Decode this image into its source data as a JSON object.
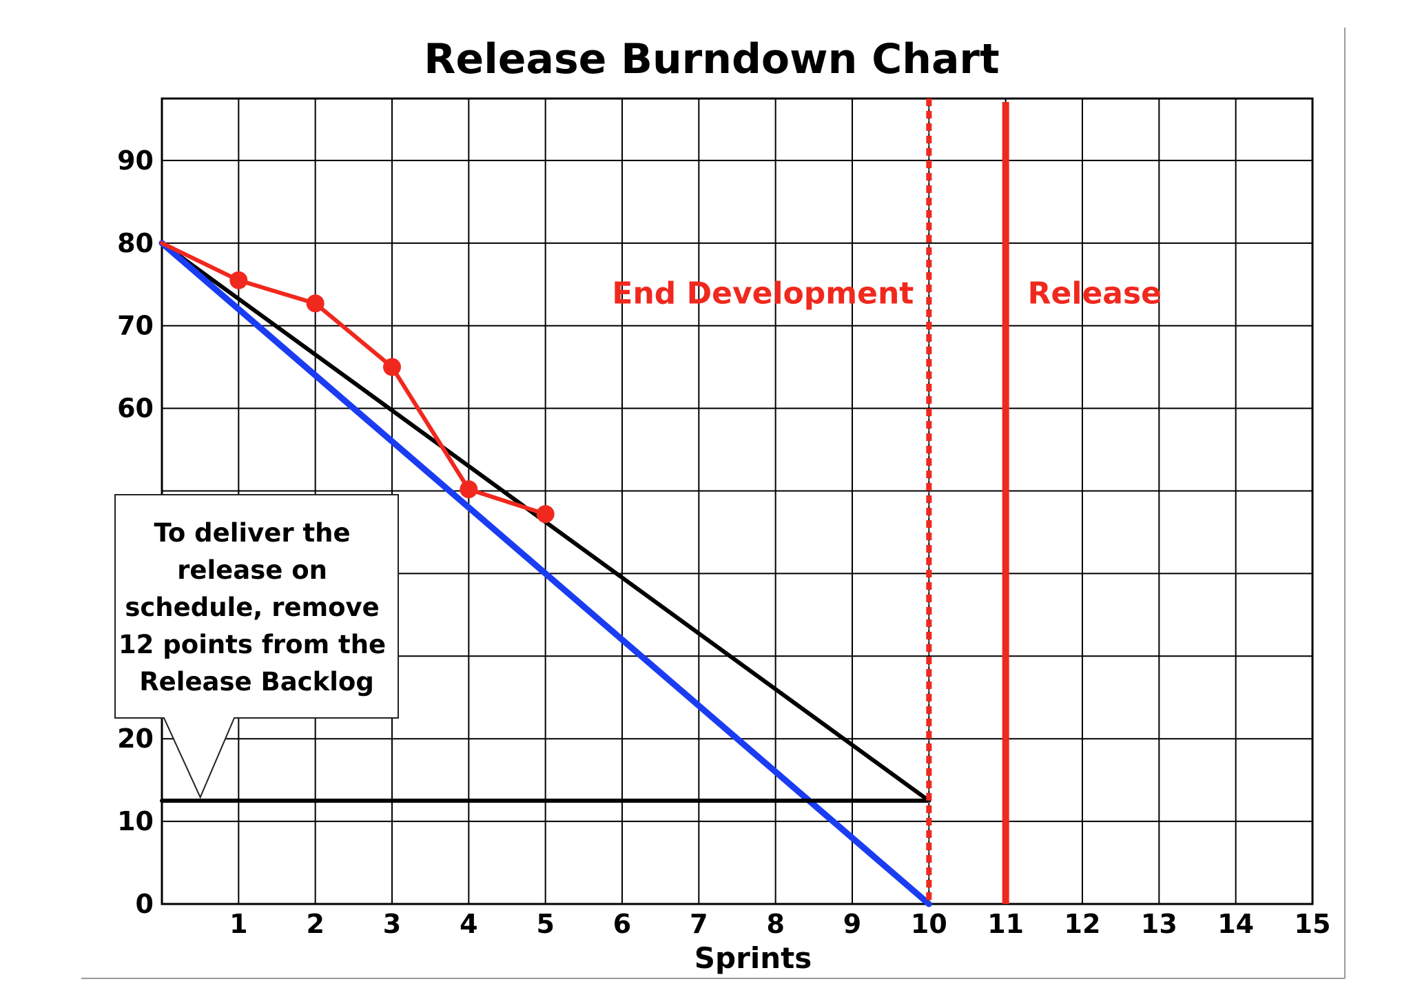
{
  "chart_data": {
    "type": "line",
    "title": "Release Burndown Chart",
    "xlabel": "Sprints",
    "ylabel": "",
    "xlim": [
      0,
      15
    ],
    "ylim": [
      0,
      97.5
    ],
    "x_ticks": [
      1,
      2,
      3,
      4,
      5,
      6,
      7,
      8,
      9,
      10,
      11,
      12,
      13,
      14,
      15
    ],
    "y_ticks": [
      0,
      10,
      20,
      30,
      40,
      50,
      60,
      70,
      80,
      90
    ],
    "y_tick_labels": [
      "0",
      "10",
      "20",
      "",
      "",
      "",
      "60",
      "70",
      "80",
      "90"
    ],
    "grid": true,
    "series": [
      {
        "type": "line-markers",
        "color": "#f0281e",
        "points": [
          [
            0,
            80
          ],
          [
            1,
            75.5
          ],
          [
            2,
            72.7
          ],
          [
            3,
            65
          ],
          [
            4,
            50.2
          ],
          [
            5,
            47.2
          ]
        ]
      },
      {
        "type": "line",
        "color": "#000000",
        "points": [
          [
            0,
            80
          ],
          [
            10,
            12.5
          ]
        ]
      },
      {
        "type": "line",
        "color": "#1a3cf2",
        "points": [
          [
            0,
            80
          ],
          [
            10,
            0
          ]
        ]
      },
      {
        "type": "hline",
        "color": "#000000",
        "points": [
          [
            0,
            12.5
          ],
          [
            10,
            12.5
          ]
        ]
      }
    ],
    "vertical_markers": [
      {
        "x": 10,
        "style": "dashed",
        "color": "#f0281e",
        "label": "End Development",
        "label_side": "left"
      },
      {
        "x": 11,
        "style": "solid",
        "color": "#f0281e",
        "label": "Release",
        "label_side": "right"
      }
    ],
    "callout": {
      "lines": [
        "To deliver the",
        "release on",
        "schedule, remove",
        "12 points from the",
        "Release Backlog"
      ],
      "pointer_target": [
        0.5,
        12.5
      ]
    }
  }
}
